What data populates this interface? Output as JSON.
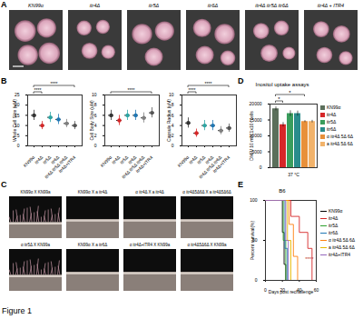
{
  "figure_label": "Figure 1",
  "panel_letters": [
    "A",
    "B",
    "C",
    "D",
    "E"
  ],
  "images_a": {
    "captions": [
      "KN99α",
      "itr4Δ",
      "itr5Δ",
      "itr6Δ",
      "itr4Δ itr5Δ itr6Δ",
      "itr4Δ + ITR4"
    ]
  },
  "images_c": {
    "captions": [
      "KN99α X KN99a",
      "KN99α X a itr4Δ",
      "α itr4Δ X a itr4Δ",
      "α itr4Δ5Δ6Δ X a itr4Δ5Δ6Δ",
      "α itr5Δ X KN99a",
      "KN99α X a itr6Δ",
      "α itr4Δ+ITR4 X KN99a",
      "α itr4Δ5Δ6Δ X KN99a"
    ]
  },
  "chart_data": [
    {
      "type": "scatter",
      "ylabel": "Whole Cell Size (uM)",
      "categories": [
        "KN99α",
        "itr4Δ",
        "itr5Δ",
        "itr6Δ",
        "itr4Δ itr5Δ itr6Δ",
        "itr4Δ+ITR4"
      ],
      "values": [
        15,
        10,
        14,
        13,
        11,
        10
      ],
      "errors": [
        2.5,
        2,
        2.5,
        2.5,
        2,
        2
      ],
      "colors": [
        "#333333",
        "#d62728",
        "#2ca6a4",
        "#1f77b4",
        "#7f7f7f",
        "#555555"
      ],
      "ylim": [
        0,
        25
      ],
      "yticks": [
        0,
        5,
        10,
        15,
        20,
        25
      ],
      "annotations": [
        {
          "between": [
            "KN99α",
            "itr4Δ"
          ],
          "text": "****"
        },
        {
          "between": [
            "KN99α",
            "itr4Δ+ITR4"
          ],
          "text": "****"
        }
      ]
    },
    {
      "type": "scatter",
      "ylabel": "Cell Body Size (uM)",
      "categories": [
        "KN99α",
        "itr4Δ",
        "itr5Δ",
        "itr6Δ",
        "itr4Δ itr5Δ itr6Δ",
        "itr4Δ+ITR4"
      ],
      "values": [
        6,
        5,
        6,
        6,
        5.5,
        6.5
      ],
      "errors": [
        1,
        1,
        1,
        1,
        1,
        1
      ],
      "colors": [
        "#333333",
        "#d62728",
        "#2ca6a4",
        "#1f77b4",
        "#7f7f7f",
        "#555555"
      ],
      "ylim": [
        0,
        10
      ],
      "yticks": [
        0,
        2,
        4,
        6,
        8,
        10
      ],
      "annotations": [
        {
          "between": [
            "KN99α",
            "itr4Δ+ITR4"
          ],
          "text": "****"
        }
      ]
    },
    {
      "type": "scatter",
      "ylabel": "Capsule Radius (uM)",
      "categories": [
        "KN99α",
        "itr4Δ",
        "itr5Δ",
        "itr6Δ",
        "itr4Δ itr5Δ itr6Δ",
        "itr4Δ+ITR4"
      ],
      "values": [
        4.5,
        2.5,
        4,
        4,
        3,
        3.5
      ],
      "errors": [
        1,
        0.8,
        1,
        1,
        0.8,
        0.8
      ],
      "colors": [
        "#333333",
        "#d62728",
        "#2ca6a4",
        "#1f77b4",
        "#7f7f7f",
        "#555555"
      ],
      "ylim": [
        0,
        10
      ],
      "yticks": [
        0,
        2,
        4,
        6,
        8,
        10
      ],
      "annotations": [
        {
          "between": [
            "KN99α",
            "itr4Δ"
          ],
          "text": "****"
        },
        {
          "between": [
            "KN99α",
            "itr4Δ+ITR4"
          ],
          "text": "****"
        }
      ]
    },
    {
      "type": "bar",
      "title": "Inositol uptake assays",
      "ylabel": "DMP/ 10 min 1x10⁷ cells",
      "xlabel": "37 °C",
      "categories": [
        "KN99α",
        "itr4Δ",
        "itr5Δ",
        "itr6Δ",
        "α itr4Δ 5Δ 6Δ",
        "a itr4Δ 5Δ 6Δ"
      ],
      "values": [
        18500,
        13500,
        17000,
        17000,
        14500,
        14500
      ],
      "errors": [
        600,
        700,
        900,
        800,
        300,
        400
      ],
      "colors": [
        "#5b6f5b",
        "#d62728",
        "#3a9d5d",
        "#2a8c8c",
        "#e8903a",
        "#f2b36b"
      ],
      "ylim": [
        0,
        20000
      ],
      "yticks": [
        0,
        5000,
        10000,
        15000,
        20000
      ],
      "tick_labels": "y",
      "legend": "right",
      "annotations": [
        {
          "between": [
            "KN99α",
            "itr4Δ"
          ],
          "text": "*"
        },
        {
          "between": [
            "KN99α",
            "α itr4Δ 5Δ 6Δ"
          ],
          "text": "*"
        }
      ]
    },
    {
      "type": "line",
      "title": "B6",
      "xlabel": "Days post rechallenge",
      "ylabel": "Percent survival(%)",
      "line_style": "step",
      "legend": "right",
      "xlim": [
        0,
        60
      ],
      "xticks": [
        0,
        20,
        40,
        60
      ],
      "ylim": [
        0,
        100
      ],
      "yticks": [
        0,
        50,
        100
      ],
      "series": [
        {
          "name": "KN99α",
          "color": "#000000",
          "x": [
            0,
            18,
            20,
            22,
            24
          ],
          "values": [
            100,
            100,
            60,
            20,
            0
          ]
        },
        {
          "name": "itr4Δ",
          "color": "#d62728",
          "x": [
            0,
            25,
            30,
            40,
            50,
            55
          ],
          "values": [
            100,
            100,
            80,
            60,
            40,
            0
          ]
        },
        {
          "name": "itr5Δ",
          "color": "#2ca02c",
          "x": [
            0,
            19,
            21,
            24
          ],
          "values": [
            100,
            100,
            50,
            0
          ]
        },
        {
          "name": "itr6Δ",
          "color": "#1f77b4",
          "x": [
            0,
            20,
            23,
            26
          ],
          "values": [
            100,
            100,
            40,
            0
          ]
        },
        {
          "name": "α itr4Δ 5Δ 6Δ",
          "color": "#ff7f0e",
          "x": [
            0,
            24,
            28,
            33,
            38
          ],
          "values": [
            100,
            100,
            70,
            30,
            0
          ]
        },
        {
          "name": "a itr4Δ 5Δ 6Δ",
          "color": "#e6b800",
          "x": [
            0,
            22,
            26,
            30
          ],
          "values": [
            100,
            100,
            50,
            0
          ]
        },
        {
          "name": "itr4Δ+ITR4",
          "color": "#9467bd",
          "x": [
            0,
            20,
            24,
            27
          ],
          "values": [
            100,
            100,
            50,
            0
          ]
        }
      ],
      "annotation": "****"
    }
  ]
}
